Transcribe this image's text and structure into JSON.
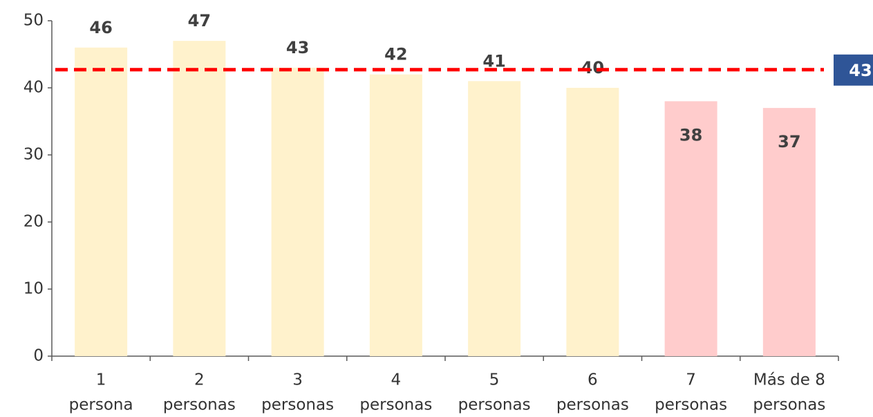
{
  "chart_data": {
    "type": "bar",
    "categories": [
      [
        "1",
        "persona"
      ],
      [
        "2",
        "personas"
      ],
      [
        "3",
        "personas"
      ],
      [
        "4",
        "personas"
      ],
      [
        "5",
        "personas"
      ],
      [
        "6",
        "personas"
      ],
      [
        "7",
        "personas"
      ],
      [
        "Más de 8",
        "personas"
      ]
    ],
    "values": [
      46,
      47,
      43,
      42,
      41,
      40,
      38,
      37
    ],
    "colors": [
      "#fff2cc",
      "#fff2cc",
      "#fff2cc",
      "#fff2cc",
      "#fff2cc",
      "#fff2cc",
      "#ffcccc",
      "#ffcccc"
    ],
    "ylim": [
      0,
      50
    ],
    "yticks": [
      0,
      10,
      20,
      30,
      40,
      50
    ],
    "grid": false,
    "reference_line": {
      "value": 42.7,
      "label": "43",
      "color": "#ff0000"
    }
  }
}
